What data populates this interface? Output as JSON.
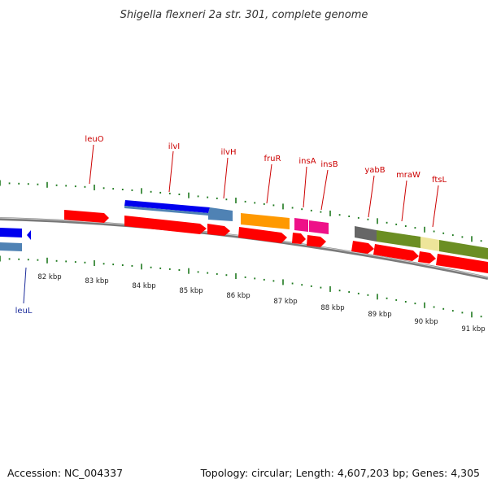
{
  "title": "Shigella flexneri 2a str. 301, complete genome",
  "accession": "Accession: NC_004337",
  "summary": "Topology: circular; Length: 4,607,203 bp; Genes: 4,305",
  "colors": {
    "backbone": "#888888",
    "tick": "#1f7a1f",
    "cds": "#ff0000",
    "gene_label": "#cc0000",
    "reverse_label": "#1a2a9a",
    "blue": "#0000ee",
    "steel": "#4f82b4",
    "orange": "#ff9900",
    "magenta": "#ee1188",
    "gray": "#666666",
    "olive": "#6b8e23",
    "khaki": "#eee59a"
  },
  "scale_labels": [
    {
      "label": "82 kbp",
      "kbp": 82
    },
    {
      "label": "83 kbp",
      "kbp": 83
    },
    {
      "label": "84 kbp",
      "kbp": 84
    },
    {
      "label": "85 kbp",
      "kbp": 85
    },
    {
      "label": "86 kbp",
      "kbp": 86
    },
    {
      "label": "87 kbp",
      "kbp": 87
    },
    {
      "label": "88 kbp",
      "kbp": 88
    },
    {
      "label": "89 kbp",
      "kbp": 89
    },
    {
      "label": "90 kbp",
      "kbp": 90
    },
    {
      "label": "91 kbp",
      "kbp": 91
    }
  ],
  "genes": [
    {
      "name": "leuO",
      "strand": "forward"
    },
    {
      "name": "ilvI",
      "strand": "forward"
    },
    {
      "name": "ilvH",
      "strand": "forward"
    },
    {
      "name": "fruR",
      "strand": "forward"
    },
    {
      "name": "insA",
      "strand": "forward"
    },
    {
      "name": "insB",
      "strand": "forward"
    },
    {
      "name": "yabB",
      "strand": "forward"
    },
    {
      "name": "mraW",
      "strand": "forward"
    },
    {
      "name": "ftsL",
      "strand": "forward"
    },
    {
      "name": "leuL",
      "strand": "reverse"
    }
  ]
}
